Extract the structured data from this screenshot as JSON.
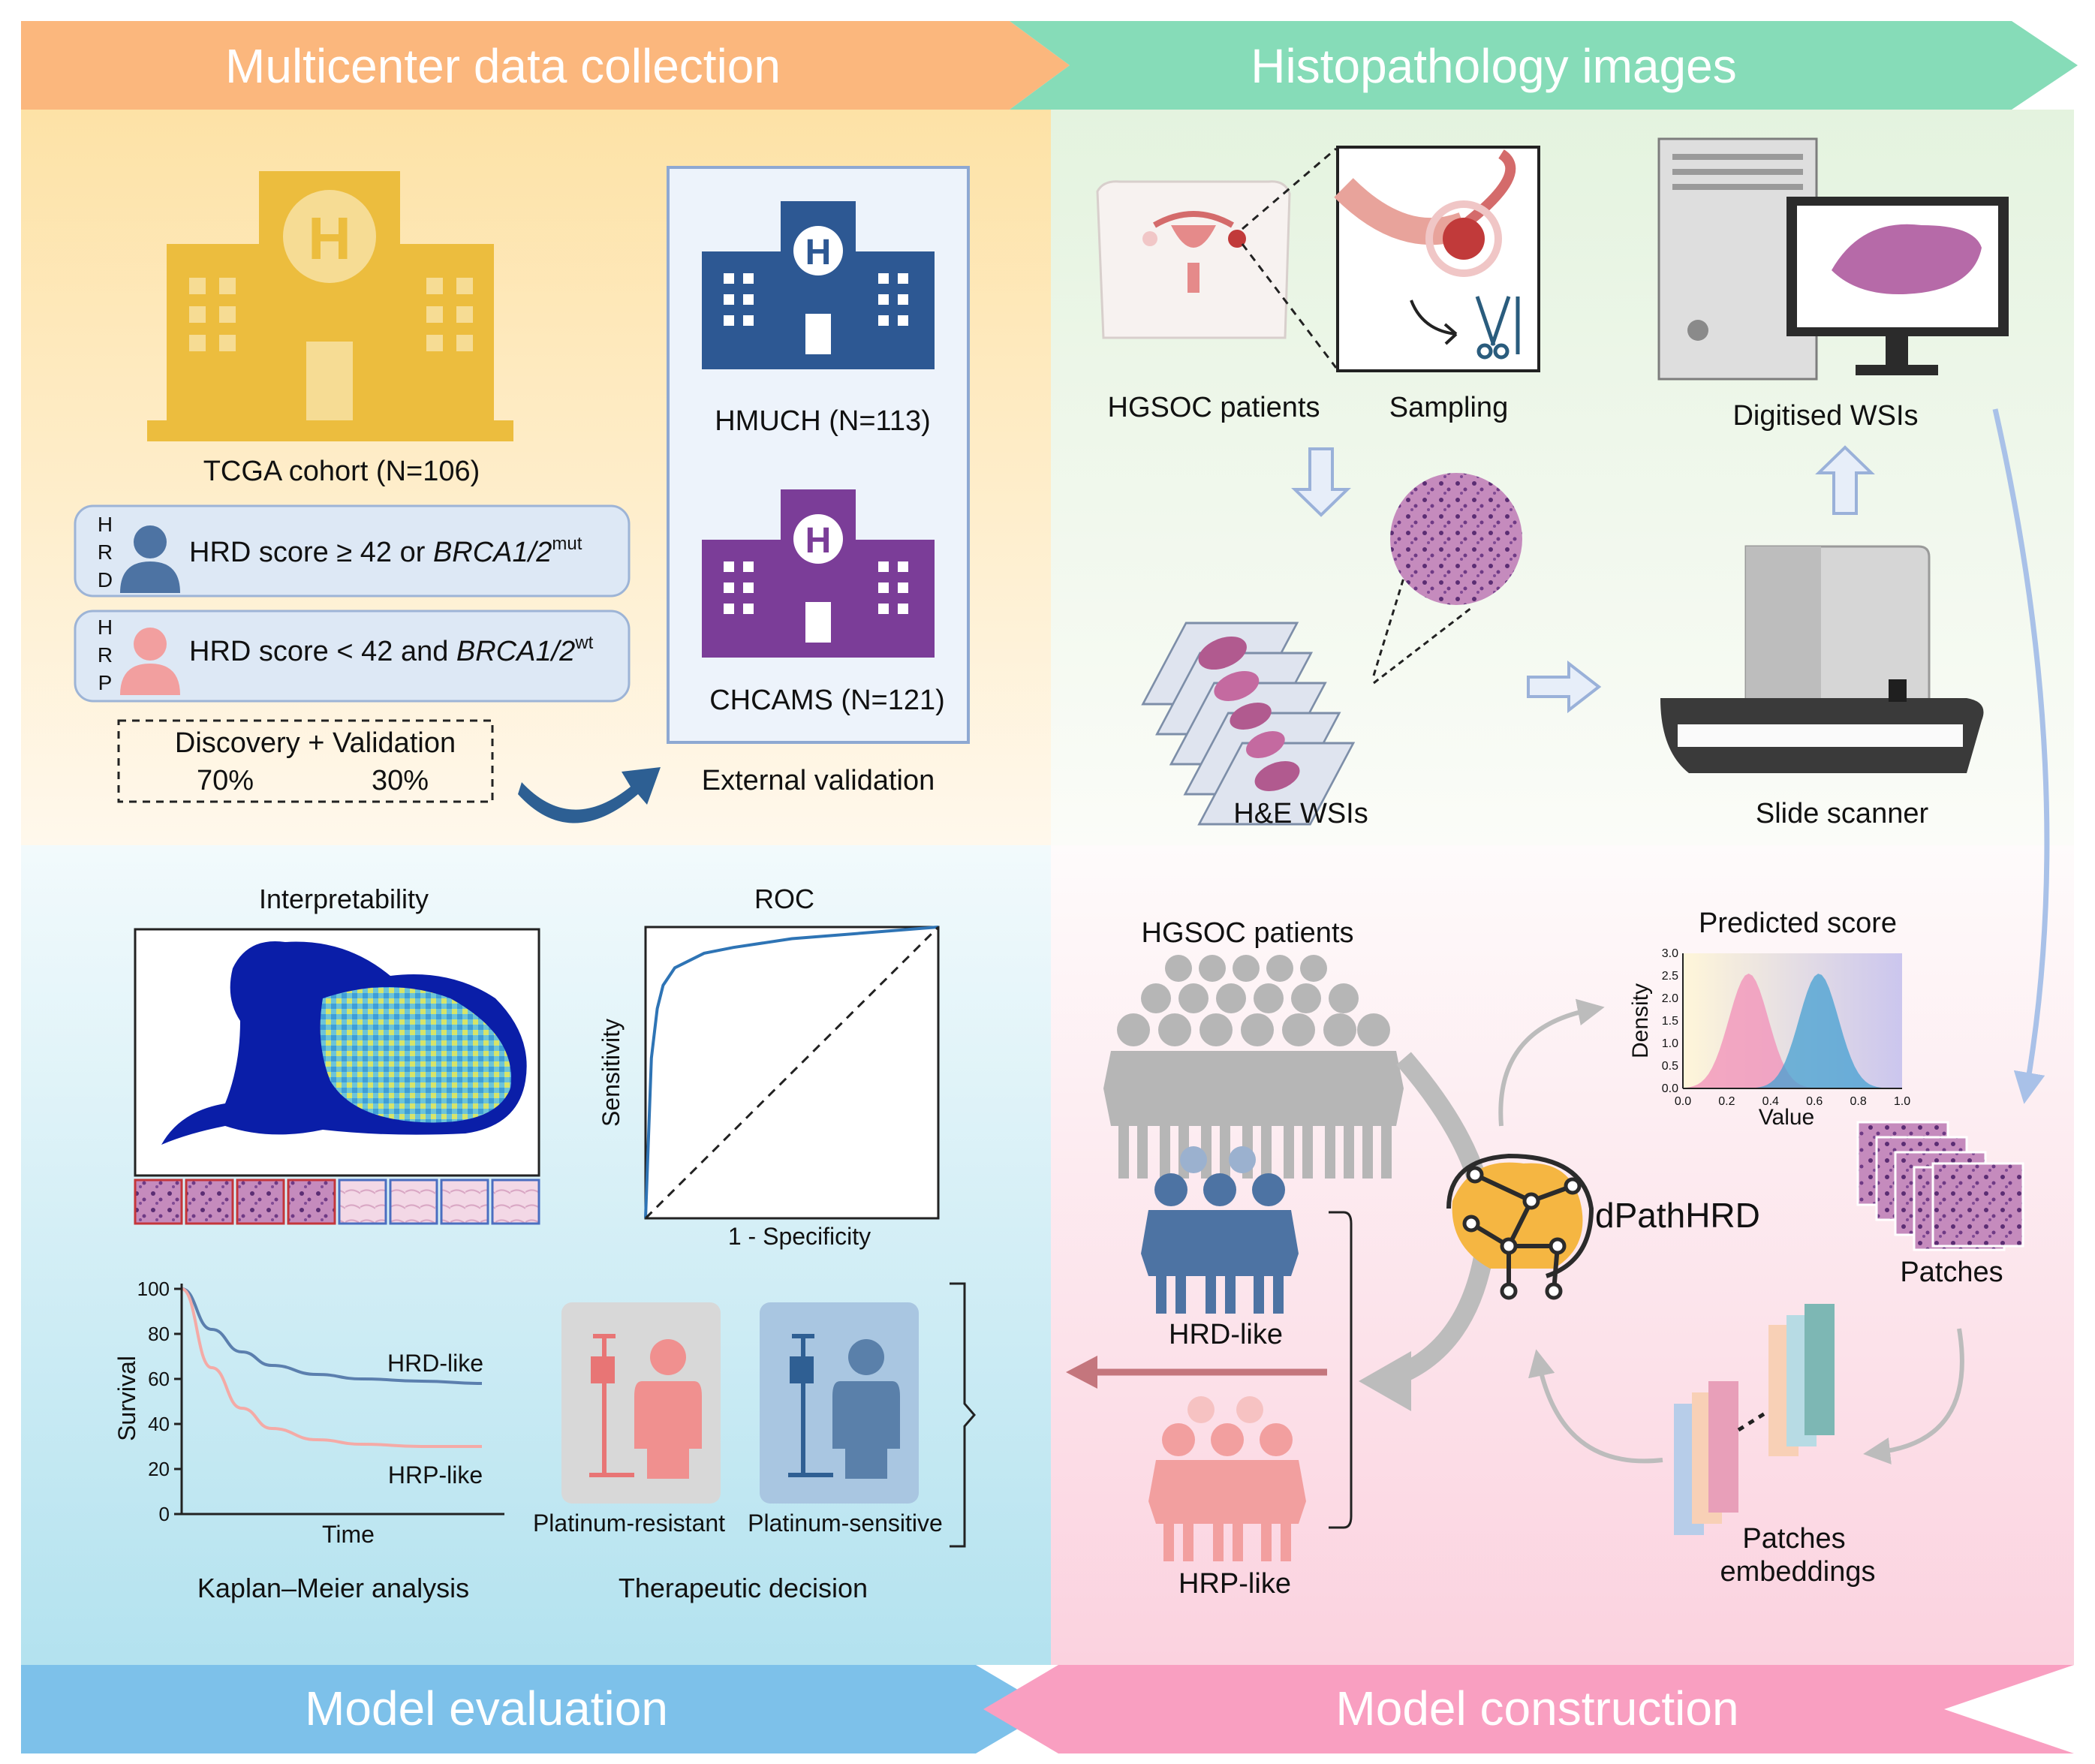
{
  "banners": {
    "collection": "Multicenter data collection",
    "histopathology": "Histopathology images",
    "evaluation": "Model evaluation",
    "construction": "Model construction"
  },
  "collection": {
    "tcga_label": "TCGA cohort (N=106)",
    "hmuch_label": "HMUCH (N=113)",
    "chcams_label": "CHCAMS (N=121)",
    "hrd_letters": [
      "H",
      "R",
      "D"
    ],
    "hrp_letters": [
      "H",
      "R",
      "P"
    ],
    "hrd_criteria": {
      "text": "HRD score ≥ 42 or ",
      "gene": "BRCA1/2",
      "sup": "mut"
    },
    "hrp_criteria": {
      "text": "HRD score < 42 and ",
      "gene": "BRCA1/2",
      "sup": "wt"
    },
    "split_title": "Discovery + Validation",
    "split_discovery": "70%",
    "split_validation": "30%",
    "external_label": "External validation"
  },
  "histopathology": {
    "patients_label": "HGSOC patients",
    "sampling_label": "Sampling",
    "wsi_label": "Digitised WSIs",
    "he_label": "H&E WSIs",
    "scanner_label": "Slide scanner"
  },
  "evaluation": {
    "interpretability_title": "Interpretability",
    "roc_title": "ROC",
    "roc_xlabel": "1 - Specificity",
    "roc_ylabel": "Sensitivity",
    "km_ylabel": "Survival",
    "km_xlabel": "Time",
    "km_title": "Kaplan–Meier analysis",
    "km_series_hrd": "HRD-like",
    "km_series_hrp": "HRP-like",
    "resistant_label": "Platinum-resistant",
    "sensitive_label": "Platinum-sensitive",
    "decision_title": "Therapeutic decision"
  },
  "construction": {
    "patients_label": "HGSOC patients",
    "hrd_like_label": "HRD-like",
    "hrp_like_label": "HRP-like",
    "model_label": "dPathHRD",
    "predicted_title": "Predicted score",
    "density_xlabel": "Value",
    "density_ylabel": "Density",
    "patches_label": "Patches",
    "embeddings_label_1": "Patches",
    "embeddings_label_2": "embeddings"
  },
  "colors": {
    "collection_banner": "#fbb77d",
    "histopathology_banner": "#86dcb8",
    "evaluation_banner": "#7dc1ea",
    "construction_banner": "#f99fc1",
    "hrd_blue": "#4d73a3",
    "hrp_pink": "#f29f9f"
  },
  "chart_data": [
    {
      "type": "line",
      "title": "ROC",
      "xlabel": "1 - Specificity",
      "ylabel": "Sensitivity",
      "xlim": [
        0,
        1
      ],
      "ylim": [
        0,
        1
      ],
      "series": [
        {
          "x": [
            0,
            0.02,
            0.04,
            0.06,
            0.1,
            0.2,
            0.3,
            0.5,
            0.75,
            1.0
          ],
          "y": [
            0,
            0.55,
            0.72,
            0.8,
            0.86,
            0.91,
            0.93,
            0.96,
            0.98,
            1.0
          ]
        },
        {
          "x": [
            0,
            1
          ],
          "y": [
            0,
            1
          ]
        }
      ]
    },
    {
      "type": "line",
      "title": "Kaplan–Meier analysis",
      "xlabel": "Time",
      "ylabel": "Survival",
      "ylim": [
        0,
        100
      ],
      "yticks": [
        0,
        20,
        40,
        60,
        80,
        100
      ],
      "series": [
        {
          "name": "HRD-like",
          "x": [
            0,
            0.1,
            0.2,
            0.3,
            0.45,
            0.6,
            0.8,
            1.0
          ],
          "y": [
            100,
            82,
            72,
            66,
            62,
            60,
            59,
            58
          ]
        },
        {
          "name": "HRP-like",
          "x": [
            0,
            0.1,
            0.2,
            0.3,
            0.45,
            0.6,
            0.8,
            1.0
          ],
          "y": [
            100,
            65,
            47,
            38,
            33,
            31,
            30,
            30
          ]
        }
      ]
    },
    {
      "type": "area",
      "title": "Predicted score",
      "xlabel": "Value",
      "ylabel": "Density",
      "xlim": [
        0,
        1
      ],
      "ylim": [
        0,
        3
      ],
      "xticks": [
        0.0,
        0.2,
        0.4,
        0.6,
        0.8,
        1.0
      ],
      "yticks": [
        0.0,
        0.5,
        1.0,
        1.5,
        2.0,
        2.5,
        3.0
      ],
      "series": [
        {
          "mean": 0.3,
          "peak_density": 2.55
        },
        {
          "mean": 0.62,
          "peak_density": 2.55
        }
      ]
    }
  ]
}
